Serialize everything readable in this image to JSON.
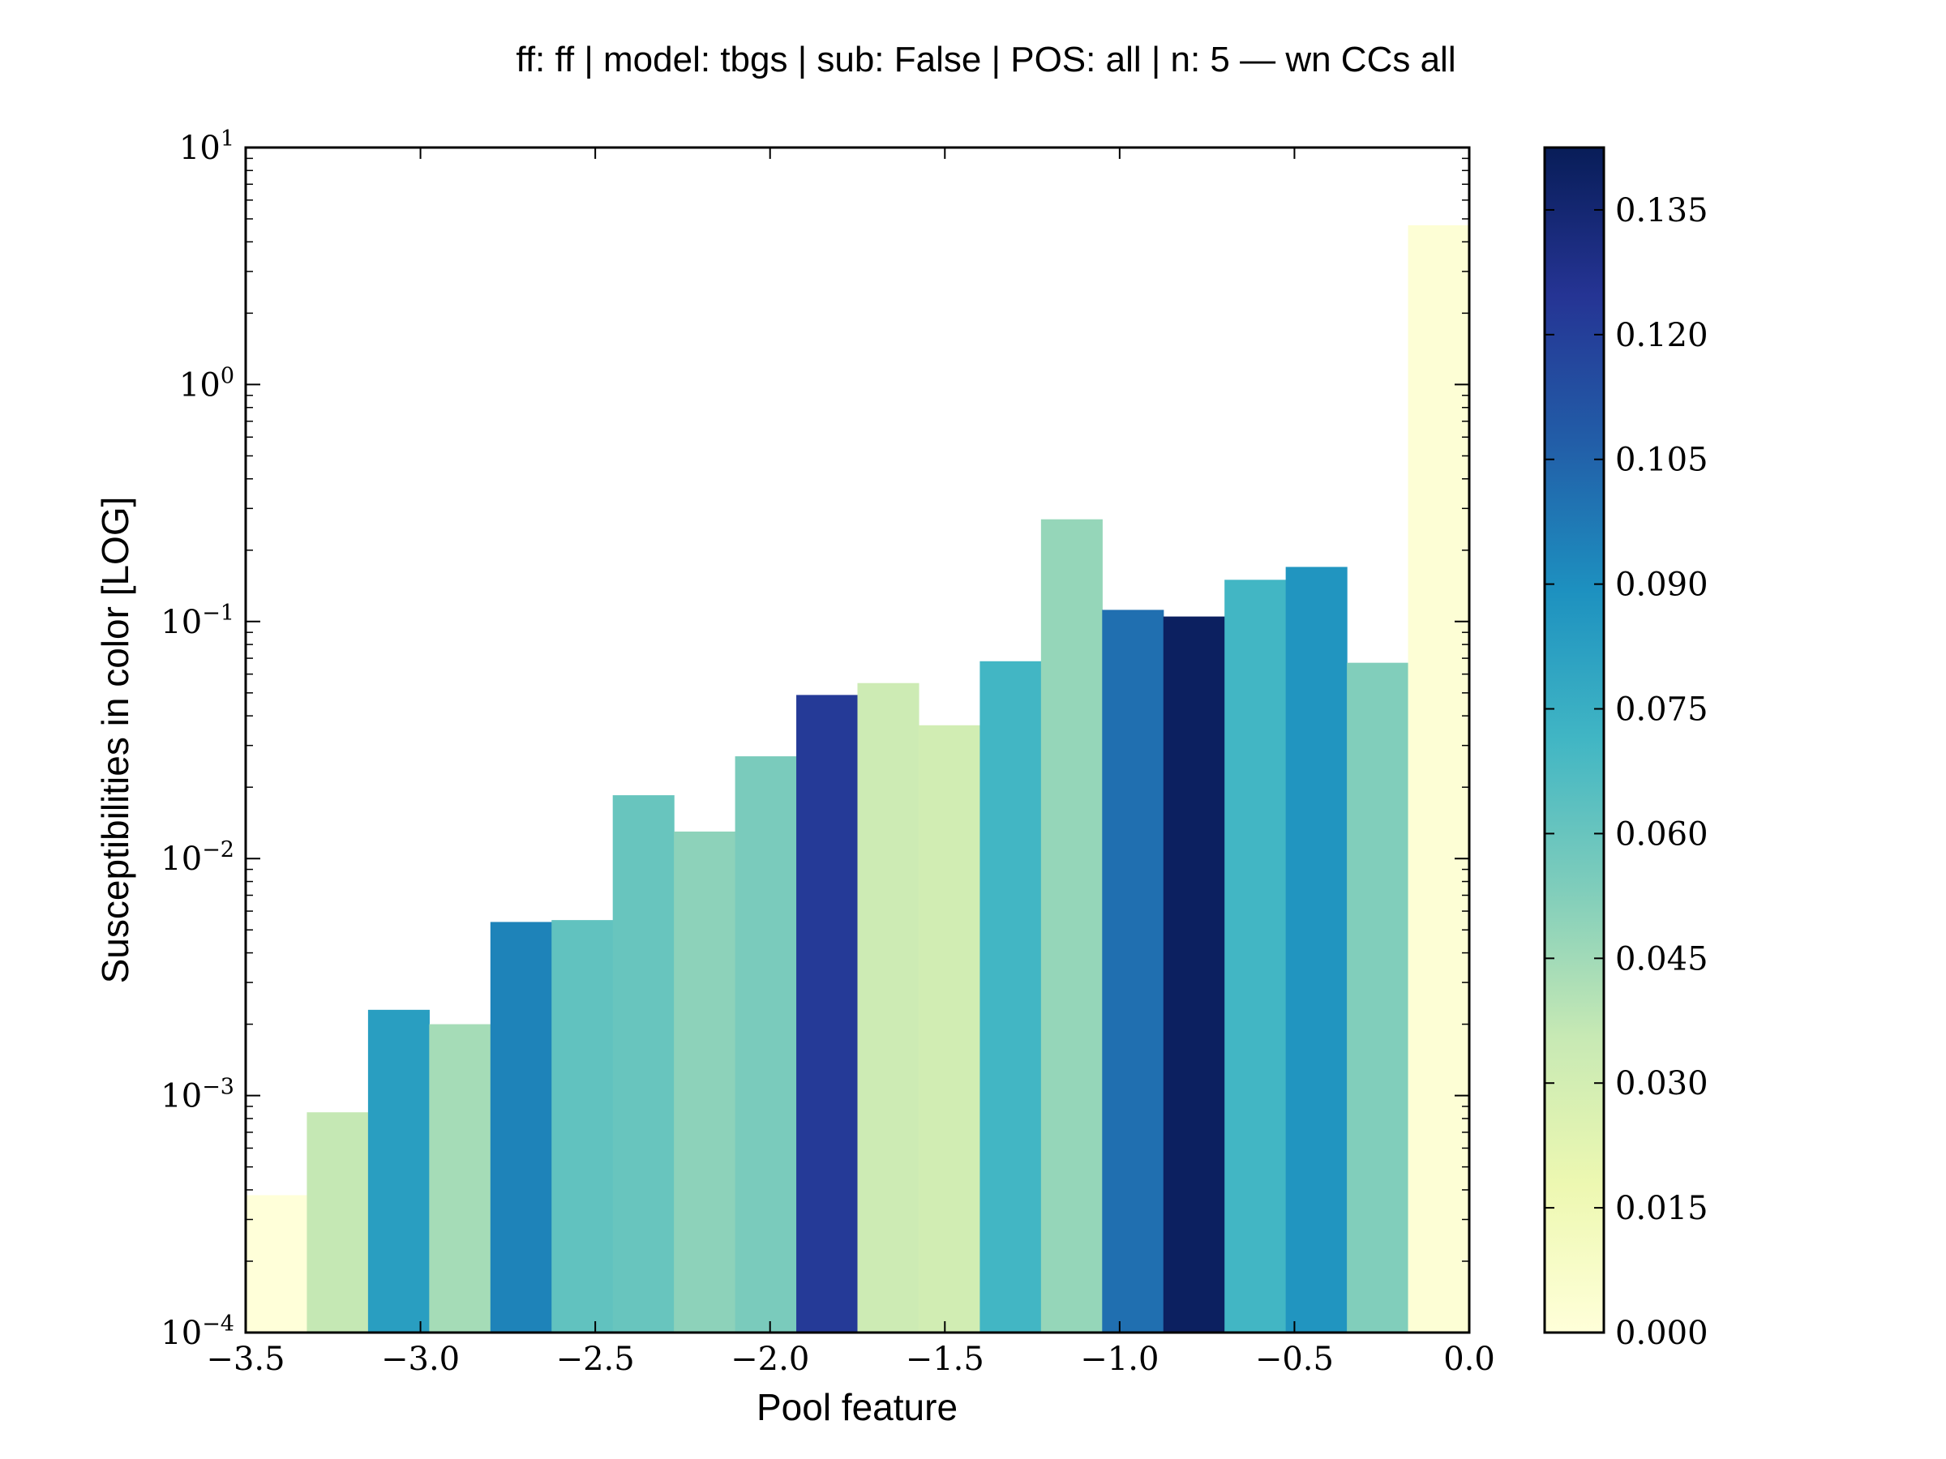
{
  "chart_data": {
    "type": "bar",
    "title": "ff: ff | model: tbgs | sub: False | POS: all | n: 5 — wn CCs all",
    "xlabel": "Pool feature",
    "ylabel": "Susceptibilities in color [LOG]",
    "yscale": "log",
    "xlim": [
      -3.5,
      0.0
    ],
    "ylim": [
      0.0001,
      10
    ],
    "x_ticks": [
      -3.5,
      -3.0,
      -2.5,
      -2.0,
      -1.5,
      -1.0,
      -0.5,
      0.0
    ],
    "x_tick_labels": [
      "−3.5",
      "−3.0",
      "−2.5",
      "−2.0",
      "−1.5",
      "−1.0",
      "−0.5",
      "0.0"
    ],
    "y_ticks": [
      {
        "base": "10",
        "exp": "−4",
        "value": 0.0001
      },
      {
        "base": "10",
        "exp": "−3",
        "value": 0.001
      },
      {
        "base": "10",
        "exp": "−2",
        "value": 0.01
      },
      {
        "base": "10",
        "exp": "−1",
        "value": 0.1
      },
      {
        "base": "10",
        "exp": "0",
        "value": 1
      },
      {
        "base": "10",
        "exp": "1",
        "value": 10
      }
    ],
    "bins": [
      {
        "x0": -3.5,
        "x1": -3.325,
        "value": 0.00038,
        "color_value": 0.0
      },
      {
        "x0": -3.325,
        "x1": -3.15,
        "value": 0.00085,
        "color_value": 0.036
      },
      {
        "x0": -3.15,
        "x1": -2.975,
        "value": 0.0023,
        "color_value": 0.083
      },
      {
        "x0": -2.975,
        "x1": -2.8,
        "value": 0.002,
        "color_value": 0.044
      },
      {
        "x0": -2.8,
        "x1": -2.625,
        "value": 0.0054,
        "color_value": 0.094
      },
      {
        "x0": -2.625,
        "x1": -2.45,
        "value": 0.0055,
        "color_value": 0.062
      },
      {
        "x0": -2.45,
        "x1": -2.275,
        "value": 0.0185,
        "color_value": 0.06
      },
      {
        "x0": -2.275,
        "x1": -2.1,
        "value": 0.013,
        "color_value": 0.05
      },
      {
        "x0": -2.1,
        "x1": -1.925,
        "value": 0.027,
        "color_value": 0.055
      },
      {
        "x0": -1.925,
        "x1": -1.75,
        "value": 0.049,
        "color_value": 0.122
      },
      {
        "x0": -1.75,
        "x1": -1.575,
        "value": 0.055,
        "color_value": 0.033
      },
      {
        "x0": -1.575,
        "x1": -1.4,
        "value": 0.0365,
        "color_value": 0.031
      },
      {
        "x0": -1.4,
        "x1": -1.225,
        "value": 0.068,
        "color_value": 0.071
      },
      {
        "x0": -1.225,
        "x1": -1.05,
        "value": 0.27,
        "color_value": 0.048
      },
      {
        "x0": -1.05,
        "x1": -0.875,
        "value": 0.112,
        "color_value": 0.101
      },
      {
        "x0": -0.875,
        "x1": -0.7,
        "value": 0.105,
        "color_value": 0.14
      },
      {
        "x0": -0.7,
        "x1": -0.525,
        "value": 0.15,
        "color_value": 0.071
      },
      {
        "x0": -0.525,
        "x1": -0.35,
        "value": 0.17,
        "color_value": 0.087
      },
      {
        "x0": -0.35,
        "x1": -0.175,
        "value": 0.067,
        "color_value": 0.053
      },
      {
        "x0": -0.175,
        "x1": 0.0,
        "value": 4.7,
        "color_value": 0.002
      }
    ],
    "colorbar": {
      "cmap": "YlGnBu",
      "min": 0.0,
      "max": 0.1425,
      "ticks": [
        0.0,
        0.015,
        0.03,
        0.045,
        0.06,
        0.075,
        0.09,
        0.105,
        0.12,
        0.135
      ],
      "tick_labels": [
        "0.000",
        "0.015",
        "0.030",
        "0.045",
        "0.060",
        "0.075",
        "0.090",
        "0.105",
        "0.120",
        "0.135"
      ]
    }
  }
}
